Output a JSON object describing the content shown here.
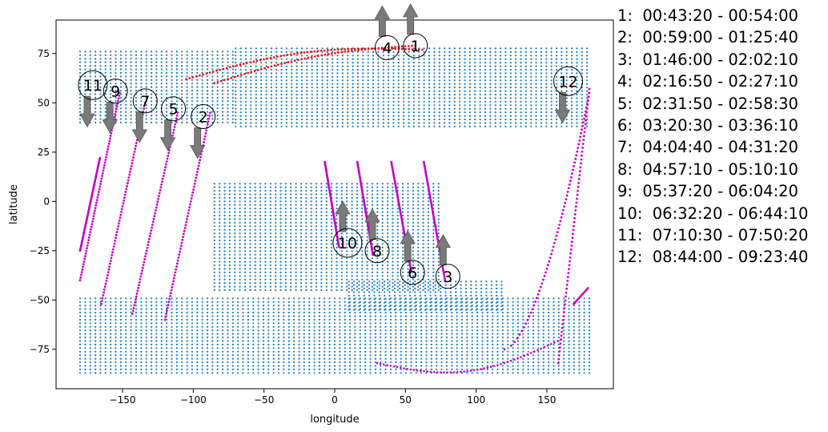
{
  "chart_data": {
    "type": "scatter",
    "xlabel": "longitude",
    "ylabel": "latitude",
    "xlim": [
      -197,
      197
    ],
    "ylim": [
      -95,
      92
    ],
    "xticks": [
      -150,
      -100,
      -50,
      0,
      50,
      100,
      150
    ],
    "yticks": [
      -75,
      -50,
      -25,
      0,
      25,
      50,
      75
    ],
    "xtick_labels": [
      "−150",
      "−100",
      "−50",
      "0",
      "50",
      "100",
      "150"
    ],
    "ytick_labels": [
      "−75",
      "−50",
      "−25",
      "0",
      "25",
      "50",
      "75"
    ],
    "colors": {
      "grid_points": "#1f77b4",
      "tracks": "#c300c3",
      "polar_arc": "#ff0000",
      "arrows": "#7a7a7a"
    },
    "coverage_regions": [
      {
        "lon": [
          -180,
          -70
        ],
        "lat": [
          40,
          77
        ]
      },
      {
        "lon": [
          -70,
          180
        ],
        "lat": [
          38,
          78
        ]
      },
      {
        "lon": [
          -85,
          75
        ],
        "lat": [
          -45,
          10
        ]
      },
      {
        "lon": [
          10,
          120
        ],
        "lat": [
          -55,
          -40
        ]
      },
      {
        "lon": [
          -180,
          180
        ],
        "lat": [
          -87,
          -48
        ]
      }
    ],
    "tracks": [
      {
        "id": "2",
        "lon": [
          -120,
          -88
        ],
        "lat": [
          -60,
          45
        ],
        "arrow": "down"
      },
      {
        "id": "5",
        "lon": [
          -143,
          -111
        ],
        "lat": [
          -57,
          45
        ],
        "arrow": "down"
      },
      {
        "id": "7",
        "lon": [
          -165,
          -134
        ],
        "lat": [
          -52,
          50
        ],
        "arrow": "down"
      },
      {
        "id": "9",
        "lon": [
          -180,
          -152
        ],
        "lat": [
          -40,
          55
        ],
        "arrow": "down"
      },
      {
        "id": "11",
        "lon": [
          -180,
          -166
        ],
        "lat": [
          -25,
          22
        ],
        "arrow": "down"
      },
      {
        "id": "10",
        "lon": [
          -7,
          3
        ],
        "lat": [
          20,
          -23
        ],
        "arrow": "up"
      },
      {
        "id": "8",
        "lon": [
          16,
          27
        ],
        "lat": [
          20,
          -27
        ],
        "arrow": "up"
      },
      {
        "id": "6",
        "lon": [
          40,
          54
        ],
        "lat": [
          20,
          -35
        ],
        "arrow": "up"
      },
      {
        "id": "3",
        "lon": [
          63,
          78
        ],
        "lat": [
          20,
          -40
        ],
        "arrow": "up"
      },
      {
        "id": "12",
        "lon": [
          158,
          180
        ],
        "lat": [
          -82,
          57
        ],
        "arrow": "down"
      }
    ],
    "markers": [
      {
        "label": "1",
        "lon": 57,
        "lat": 79
      },
      {
        "label": "4",
        "lon": 37,
        "lat": 78
      },
      {
        "label": "12",
        "lon": 165,
        "lat": 61
      },
      {
        "label": "11",
        "lon": -171,
        "lat": 59
      },
      {
        "label": "9",
        "lon": -155,
        "lat": 56
      },
      {
        "label": "7",
        "lon": -134,
        "lat": 51
      },
      {
        "label": "5",
        "lon": -114,
        "lat": 47
      },
      {
        "label": "2",
        "lon": -93,
        "lat": 43
      },
      {
        "label": "10",
        "lon": 9,
        "lat": -21
      },
      {
        "label": "8",
        "lon": 30,
        "lat": -25
      },
      {
        "label": "6",
        "lon": 55,
        "lat": -36
      },
      {
        "label": "3",
        "lon": 80,
        "lat": -38
      }
    ],
    "legend": [
      "1:  00:43:20 - 00:54:00",
      "2:  00:59:00 - 01:25:40",
      "3:  01:46:00 - 02:02:10",
      "4:  02:16:50 - 02:27:10",
      "5:  02:31:50 - 02:58:30",
      "6:  03:20:30 - 03:36:10",
      "7:  04:04:40 - 04:31:20",
      "8:  04:57:10 - 05:10:10",
      "9:  05:37:20 - 06:04:20",
      "10:  06:32:20 - 06:44:10",
      "11:  07:10:30 - 07:50:20",
      "12:  08:44:00 - 09:23:40"
    ]
  }
}
